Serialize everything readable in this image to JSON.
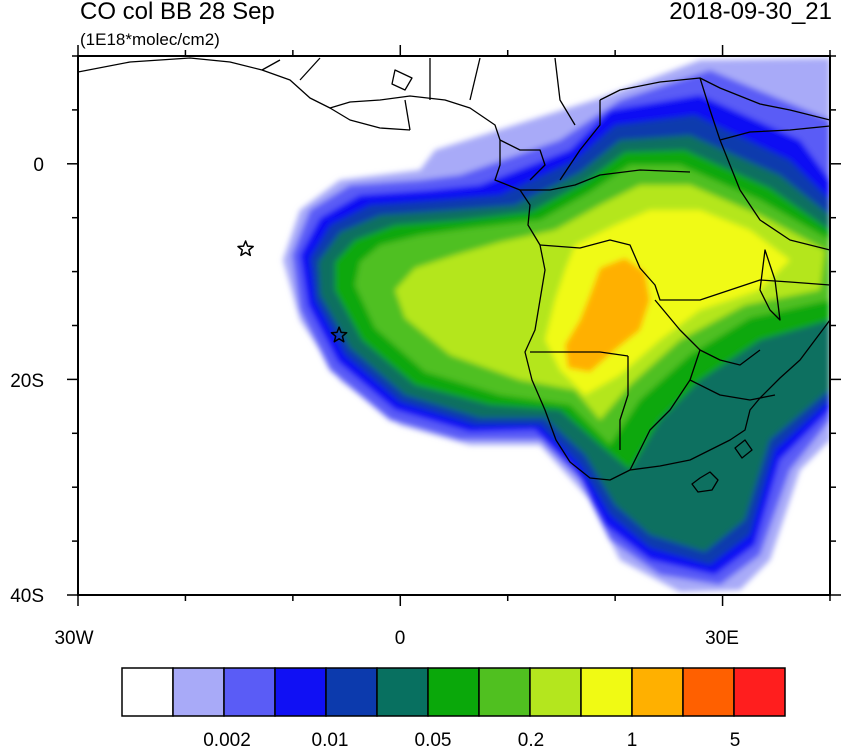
{
  "header": {
    "title": "CO col BB 28 Sep",
    "units": "(1E18*molec/cm2)",
    "datetime": "2018-09-30_21"
  },
  "map": {
    "region": "Southern Africa and South Atlantic",
    "lon_range": [
      -30,
      40
    ],
    "lat_range": [
      -40,
      10
    ],
    "y_tick_labels": [
      "0",
      "20S",
      "40S"
    ],
    "x_tick_labels": [
      "30W",
      "0",
      "30E"
    ],
    "markers": [
      {
        "type": "star",
        "lon": -14.4,
        "lat": -7.9
      },
      {
        "type": "star",
        "lon": -5.7,
        "lat": -15.9
      }
    ],
    "colors": {
      "land_outline": "#000000",
      "frame": "#000000"
    }
  },
  "colorbar": {
    "colors": [
      "#ffffff",
      "#a8aaf8",
      "#5a5cf6",
      "#1010f4",
      "#0c3aad",
      "#087060",
      "#0aa80a",
      "#50c020",
      "#b4e61e",
      "#f0fa14",
      "#ffb000",
      "#ff6000",
      "#ff1e1e"
    ],
    "tick_labels": [
      "0.002",
      "0.01",
      "0.05",
      "0.2",
      "1",
      "5"
    ]
  }
}
